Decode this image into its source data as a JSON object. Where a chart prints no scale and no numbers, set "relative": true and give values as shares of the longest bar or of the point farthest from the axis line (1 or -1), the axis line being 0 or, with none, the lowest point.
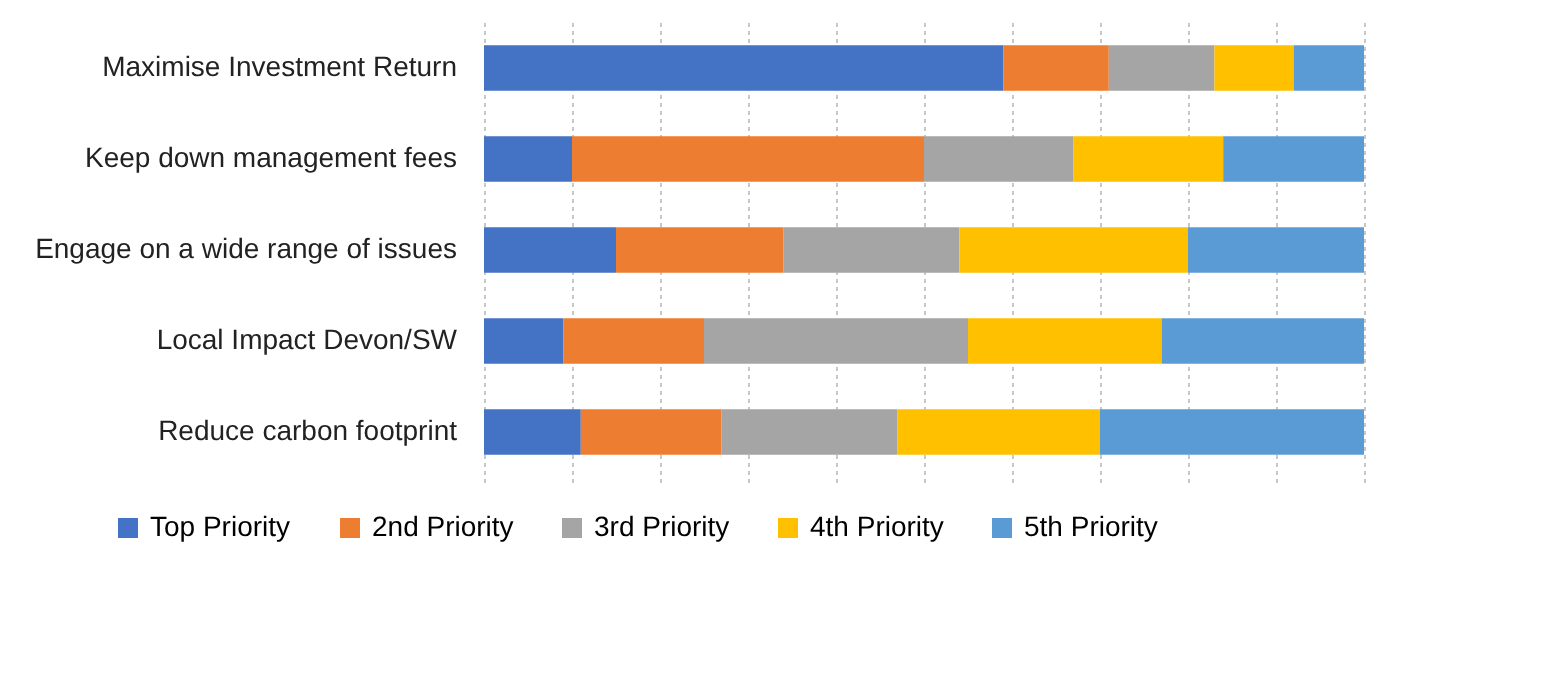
{
  "chart_data": {
    "type": "bar",
    "orientation": "horizontal",
    "stacked": true,
    "relative": true,
    "grid": "x",
    "legend": "bottom",
    "categories": [
      "Maximise Investment Return",
      "Keep down management fees",
      "Engage on a wide range of issues",
      "Local Impact Devon/SW",
      "Reduce carbon footprint"
    ],
    "series": [
      {
        "name": "Top Priority",
        "color": "#4472c4",
        "values": [
          0.59,
          0.1,
          0.15,
          0.09,
          0.11
        ]
      },
      {
        "name": "2nd Priority",
        "color": "#ed7d31",
        "values": [
          0.12,
          0.4,
          0.19,
          0.16,
          0.16
        ]
      },
      {
        "name": "3rd Priority",
        "color": "#a5a5a5",
        "values": [
          0.12,
          0.17,
          0.2,
          0.3,
          0.2
        ]
      },
      {
        "name": "4th Priority",
        "color": "#ffc000",
        "values": [
          0.09,
          0.17,
          0.26,
          0.22,
          0.23
        ]
      },
      {
        "name": "5th Priority",
        "color": "#5b9bd5",
        "values": [
          0.08,
          0.16,
          0.2,
          0.23,
          0.3
        ]
      }
    ]
  }
}
